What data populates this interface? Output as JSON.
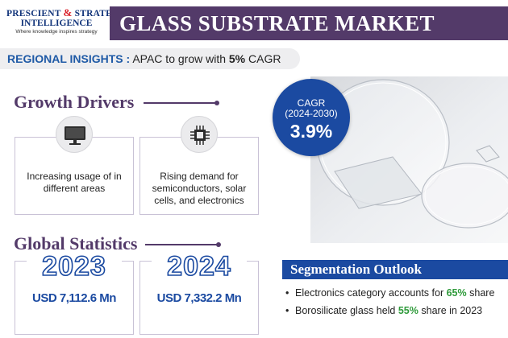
{
  "logo": {
    "name_part1": "PRESCIENT",
    "ampersand": "&",
    "name_part2": "STRATEGIC",
    "name_part3": "INTELLIGENCE",
    "tagline": "Where knowledge inspires strategy"
  },
  "title": "GLASS SUBSTRATE MARKET",
  "regional": {
    "label": "REGIONAL INSIGHTS :",
    "text_before": "APAC to grow with",
    "highlight": "5%",
    "text_after": "CAGR"
  },
  "growth_drivers": {
    "heading": "Growth Drivers",
    "items": [
      {
        "icon": "monitor-icon",
        "text": "Increasing usage of  in different areas"
      },
      {
        "icon": "chip-icon",
        "text": "Rising demand for semiconductors, solar cells, and electronics"
      }
    ]
  },
  "cagr": {
    "label": "CAGR",
    "period": "(2024-2030)",
    "value": "3.9%"
  },
  "global_statistics": {
    "heading": "Global Statistics",
    "items": [
      {
        "year": "2023",
        "value": "USD 7,112.6 Mn"
      },
      {
        "year": "2024",
        "value": "USD 7,332.2 Mn"
      }
    ]
  },
  "segmentation": {
    "heading": "Segmentation Outlook",
    "items": [
      {
        "before": "Electronics category accounts for",
        "highlight": "65%",
        "after": "share"
      },
      {
        "before": "Borosilicate glass held",
        "highlight": "55%",
        "after": "share in 2023"
      }
    ]
  },
  "colors": {
    "purple": "#533a69",
    "blue": "#1b4aa1",
    "green": "#2e9a3a",
    "logo_red": "#d8202a"
  }
}
